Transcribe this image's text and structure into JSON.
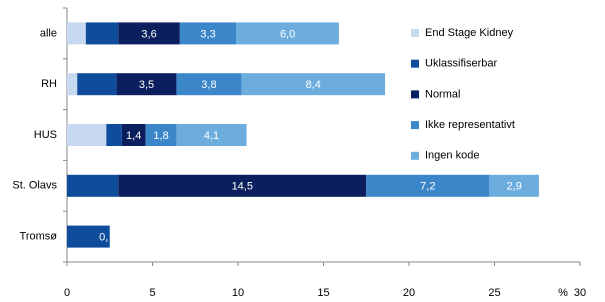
{
  "chart_data": {
    "type": "stacked-bar-horizontal",
    "categories": [
      "alle",
      "RH",
      "HUS",
      "St. Olavs",
      "Tromsø"
    ],
    "series": [
      {
        "name": "End Stage Kidney",
        "color": "#c6d9f1",
        "values": [
          1.1,
          0.6,
          2.3,
          0,
          0
        ]
      },
      {
        "name": "Uklassifiserbar",
        "color": "#0f4c9b",
        "values": [
          1.9,
          2.3,
          0.9,
          3.0,
          2.5
        ]
      },
      {
        "name": "Normal",
        "color": "#0b1f5e",
        "values": [
          3.6,
          3.5,
          1.4,
          14.5,
          0
        ],
        "value_labels": [
          "3,6",
          "3,5",
          "1,4",
          "14,5",
          "0,"
        ]
      },
      {
        "name": "Ikke representativt",
        "color": "#3a86c8",
        "values": [
          3.3,
          3.8,
          1.8,
          7.2,
          0
        ],
        "value_labels": [
          "3,3",
          "3,8",
          "1,8",
          "7,2",
          null
        ]
      },
      {
        "name": "Ingen kode",
        "color": "#6cadde",
        "values": [
          6.0,
          8.4,
          4.1,
          2.9,
          0
        ],
        "value_labels": [
          "6,0",
          "8,4",
          "4,1",
          "2,9",
          null
        ]
      }
    ],
    "xlabel": "%",
    "xlim": [
      0,
      30
    ],
    "xticks": [
      0,
      5,
      10,
      15,
      20,
      25,
      30
    ]
  }
}
